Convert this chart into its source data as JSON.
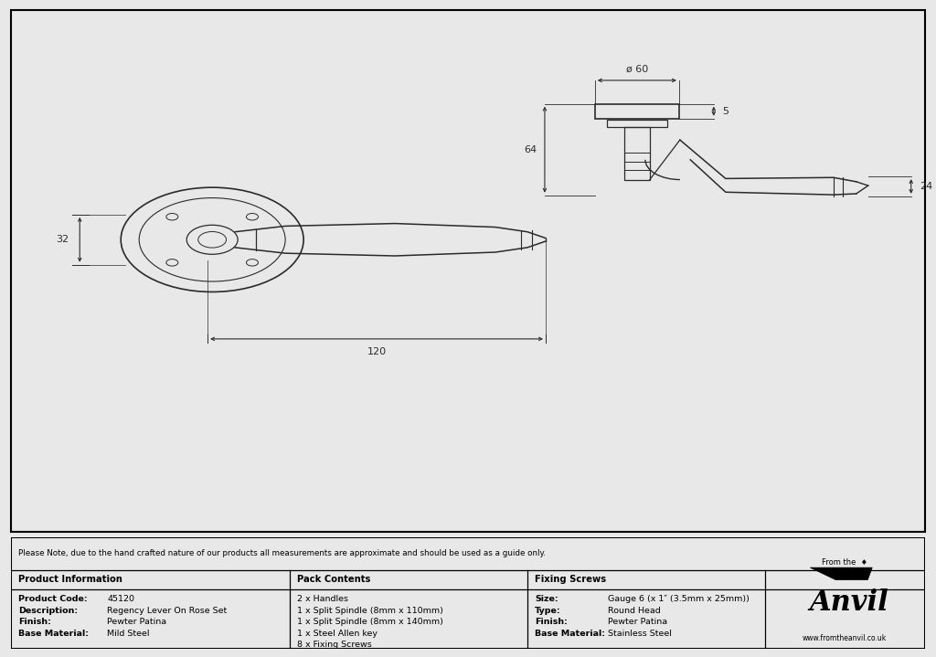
{
  "bg_color": "#e8e8e8",
  "drawing_bg": "#ffffff",
  "line_color": "#2a2a2a",
  "note_text": "Please Note, due to the hand crafted nature of our products all measurements are approximate and should be used as a guide only.",
  "product_info": {
    "header": "Product Information",
    "rows": [
      [
        "Product Code:",
        "45120"
      ],
      [
        "Description:",
        "Regency Lever On Rose Set"
      ],
      [
        "Finish:",
        "Pewter Patina"
      ],
      [
        "Base Material:",
        "Mild Steel"
      ]
    ]
  },
  "pack_contents": {
    "header": "Pack Contents",
    "items": [
      "2 x Handles",
      "1 x Split Spindle (8mm x 110mm)",
      "1 x Split Spindle (8mm x 140mm)",
      "1 x Steel Allen key",
      "8 x Fixing Screws"
    ]
  },
  "fixing_screws": {
    "header": "Fixing Screws",
    "rows": [
      [
        "Size:",
        "Gauge 6 (x 1″ (3.5mm x 25mm))"
      ],
      [
        "Type:",
        "Round Head"
      ],
      [
        "Finish:",
        "Pewter Patina"
      ],
      [
        "Base Material:",
        "Stainless Steel"
      ]
    ]
  },
  "dim_32": "32",
  "dim_120": "120",
  "dim_60": "ø 60",
  "dim_5": "5",
  "dim_64": "64",
  "dim_24": "24",
  "website": "www.fromtheanvil.co.uk"
}
